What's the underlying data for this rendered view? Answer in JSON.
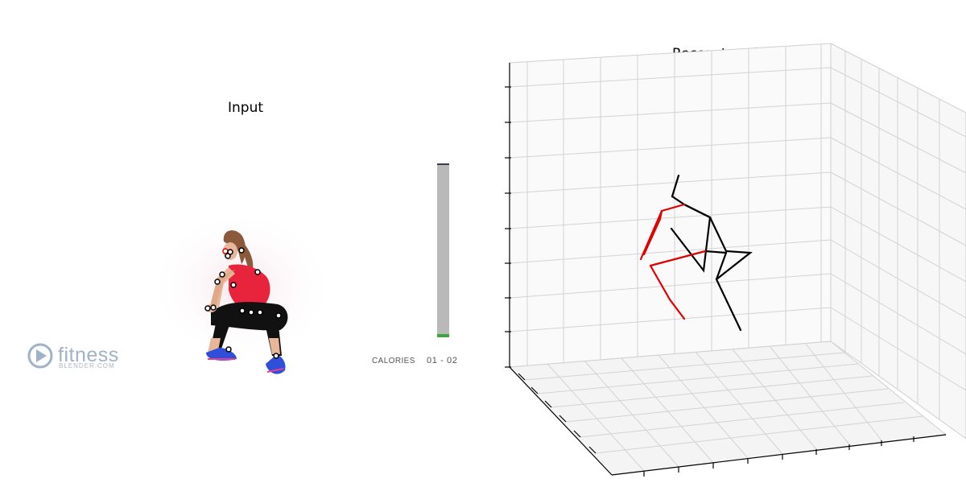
{
  "panels": {
    "input_title": "Input",
    "reconstruction_title": "Reconstruction"
  },
  "video_overlay": {
    "logo_name": "fitness",
    "logo_sub": "BLENDER.COM",
    "logo_icon": "play-circle-icon",
    "calories_label": "CALORIES",
    "calories_value": "01 - 02",
    "progress_fraction": 0.02
  },
  "colors": {
    "skeleton_left": "#e00000",
    "skeleton_right": "#000000",
    "keypoint_fill": "#ffffff",
    "keypoint_ring": "#000000",
    "grid_line": "#d0d0d0",
    "shirt": "#e8233c",
    "pants": "#111111",
    "shoes": "#2f4fd8"
  }
}
